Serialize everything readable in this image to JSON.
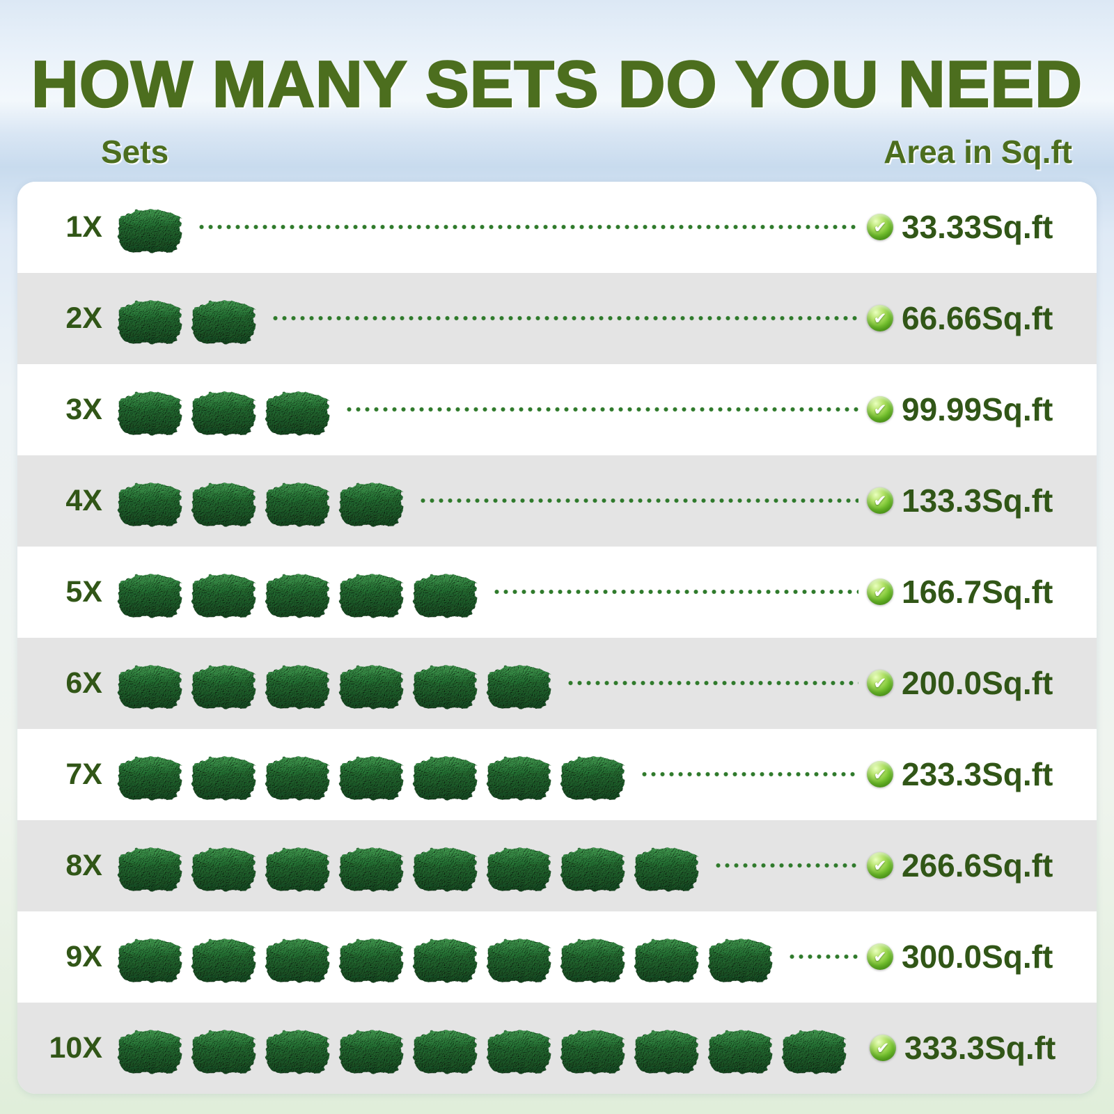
{
  "title": "HOW MANY SETS DO YOU NEED",
  "columns": {
    "sets": "Sets",
    "area": "Area in Sq.ft"
  },
  "chart_data": {
    "type": "bar",
    "style": "pictogram",
    "title": "HOW MANY SETS DO YOU NEED",
    "xlabel": "Area in Sq.ft",
    "ylabel": "Sets",
    "categories": [
      "1X",
      "2X",
      "3X",
      "4X",
      "5X",
      "6X",
      "7X",
      "8X",
      "9X",
      "10X"
    ],
    "units_per_row": [
      1,
      2,
      3,
      4,
      5,
      6,
      7,
      8,
      9,
      10
    ],
    "values": [
      33.33,
      66.66,
      99.99,
      133.3,
      166.7,
      200.0,
      233.3,
      266.6,
      300.0,
      333.3
    ],
    "value_labels": [
      "33.33Sq.ft",
      "66.66Sq.ft",
      "99.99Sq.ft",
      "133.3Sq.ft",
      "166.7Sq.ft",
      "200.0Sq.ft",
      "233.3Sq.ft",
      "266.6Sq.ft",
      "300.0Sq.ft",
      "333.3Sq.ft"
    ],
    "area_per_set_sqft": 33.33,
    "pictogram_icon": "boxwood-hedge-panel-cube",
    "legend_position": "none",
    "grid": false
  },
  "icons": {
    "check": "✔",
    "row_marker": "green-check-badge",
    "pictogram": "boxwood-hedge-cube"
  },
  "colors": {
    "title_green": "#4c6e1e",
    "text_green": "#315617",
    "dot_green": "#2f7a2b",
    "check_green": "#62b01e",
    "row_alt_gray": "#e4e4e4",
    "row_white": "#ffffff",
    "hedge_front_dark": "#1c5f2c",
    "hedge_top_light": "#2f8c3e",
    "sky_blue": "#c8dbee"
  }
}
